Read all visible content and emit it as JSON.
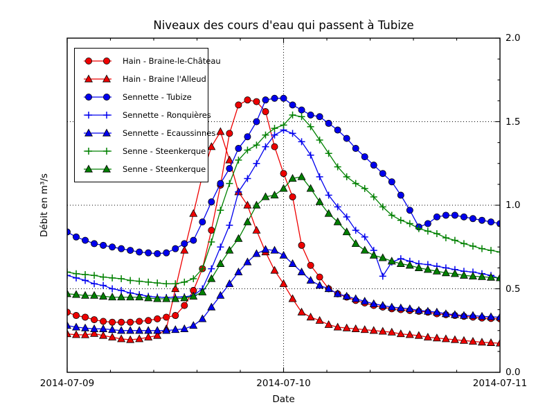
{
  "title": "Niveaux des cours d'eau qui passent à Tubize",
  "axes": {
    "xlabel": "Date",
    "ylabel": "Débit en m³/s",
    "x_tick_labels": [
      "2014-07-09",
      "2014-07-10",
      "2014-07-11"
    ],
    "y_tick_labels": [
      "0.0",
      "0.5",
      "1.0",
      "1.5",
      "2.0"
    ]
  },
  "chart_data": {
    "type": "line",
    "title": "Niveaux des cours d'eau qui passent à Tubize",
    "xlabel": "Date",
    "ylabel": "Débit en m³/s",
    "x_unit": "hours since 2014-07-09 00:00",
    "x_range_hours": [
      0,
      48
    ],
    "x_major_ticks_hours": [
      0,
      24,
      48
    ],
    "x_tick_labels": [
      "2014-07-09",
      "2014-07-10",
      "2014-07-11"
    ],
    "ylim": [
      0,
      2
    ],
    "y_major_ticks": [
      0,
      0.5,
      1.0,
      1.5,
      2.0
    ],
    "grid": {
      "style": "dotted",
      "horizontal_at": [
        0.5,
        1.0,
        1.5
      ],
      "vertical_at_hours": [
        24
      ]
    },
    "legend_position": "upper left",
    "sample_step_hours": 1,
    "series": [
      {
        "name": "Hain - Braine-le-Château",
        "color": "#ee0000",
        "marker": "circle",
        "values": [
          0.36,
          0.34,
          0.33,
          0.315,
          0.305,
          0.3,
          0.3,
          0.3,
          0.305,
          0.31,
          0.32,
          0.33,
          0.34,
          0.4,
          0.49,
          0.62,
          0.85,
          1.12,
          1.43,
          1.6,
          1.63,
          1.62,
          1.56,
          1.35,
          1.19,
          1.05,
          0.76,
          0.64,
          0.57,
          0.5,
          0.47,
          0.45,
          0.43,
          0.415,
          0.4,
          0.39,
          0.38,
          0.375,
          0.37,
          0.365,
          0.36,
          0.35,
          0.345,
          0.34,
          0.335,
          0.33,
          0.325,
          0.322,
          0.32
        ]
      },
      {
        "name": "Hain - Braine l'Alleud",
        "color": "#ee0000",
        "marker": "triangle",
        "values": [
          0.23,
          0.225,
          0.224,
          0.232,
          0.22,
          0.21,
          0.2,
          0.195,
          0.2,
          0.21,
          0.22,
          0.26,
          0.5,
          0.73,
          0.95,
          1.18,
          1.35,
          1.44,
          1.27,
          1.08,
          1.0,
          0.85,
          0.72,
          0.61,
          0.53,
          0.44,
          0.36,
          0.33,
          0.31,
          0.285,
          0.27,
          0.265,
          0.26,
          0.255,
          0.25,
          0.245,
          0.24,
          0.23,
          0.225,
          0.22,
          0.21,
          0.205,
          0.2,
          0.195,
          0.19,
          0.185,
          0.18,
          0.177,
          0.174
        ]
      },
      {
        "name": "Sennette - Tubize",
        "color": "#0000ee",
        "marker": "circle",
        "values": [
          0.84,
          0.81,
          0.79,
          0.77,
          0.76,
          0.75,
          0.74,
          0.73,
          0.72,
          0.715,
          0.71,
          0.715,
          0.74,
          0.77,
          0.79,
          0.9,
          1.02,
          1.13,
          1.22,
          1.34,
          1.41,
          1.5,
          1.63,
          1.64,
          1.64,
          1.6,
          1.57,
          1.54,
          1.53,
          1.49,
          1.45,
          1.4,
          1.34,
          1.29,
          1.24,
          1.19,
          1.14,
          1.06,
          0.97,
          0.87,
          0.89,
          0.93,
          0.94,
          0.94,
          0.93,
          0.92,
          0.91,
          0.9,
          0.89
        ]
      },
      {
        "name": "Sennette - Ronquières",
        "color": "#0000ee",
        "marker": "plus",
        "values": [
          0.58,
          0.565,
          0.55,
          0.53,
          0.52,
          0.5,
          0.49,
          0.475,
          0.465,
          0.455,
          0.45,
          0.448,
          0.45,
          0.452,
          0.46,
          0.5,
          0.62,
          0.75,
          0.88,
          1.08,
          1.16,
          1.25,
          1.35,
          1.42,
          1.45,
          1.43,
          1.38,
          1.3,
          1.17,
          1.06,
          0.99,
          0.93,
          0.85,
          0.81,
          0.73,
          0.575,
          0.66,
          0.68,
          0.665,
          0.65,
          0.645,
          0.635,
          0.625,
          0.615,
          0.605,
          0.6,
          0.59,
          0.58,
          0.56
        ]
      },
      {
        "name": "Sennette - Ecaussinnes",
        "color": "#0000ee",
        "marker": "triangle",
        "values": [
          0.28,
          0.27,
          0.265,
          0.26,
          0.26,
          0.255,
          0.25,
          0.25,
          0.25,
          0.25,
          0.25,
          0.25,
          0.255,
          0.26,
          0.28,
          0.32,
          0.39,
          0.46,
          0.53,
          0.6,
          0.66,
          0.71,
          0.735,
          0.73,
          0.7,
          0.65,
          0.6,
          0.55,
          0.52,
          0.5,
          0.47,
          0.455,
          0.44,
          0.425,
          0.41,
          0.4,
          0.39,
          0.385,
          0.38,
          0.37,
          0.365,
          0.36,
          0.35,
          0.345,
          0.34,
          0.34,
          0.335,
          0.332,
          0.33
        ]
      },
      {
        "name": "Senne - Steenkerque",
        "color": "#008000",
        "marker": "plus",
        "values": [
          0.6,
          0.59,
          0.585,
          0.58,
          0.57,
          0.565,
          0.56,
          0.55,
          0.545,
          0.54,
          0.535,
          0.53,
          0.53,
          0.54,
          0.56,
          0.62,
          0.78,
          0.97,
          1.13,
          1.27,
          1.33,
          1.36,
          1.42,
          1.46,
          1.48,
          1.54,
          1.53,
          1.47,
          1.39,
          1.31,
          1.23,
          1.17,
          1.13,
          1.1,
          1.05,
          0.99,
          0.94,
          0.91,
          0.89,
          0.86,
          0.845,
          0.83,
          0.805,
          0.79,
          0.77,
          0.755,
          0.74,
          0.73,
          0.72
        ]
      },
      {
        "name": "Senne - Steenkerque",
        "color": "#008000",
        "marker": "triangle",
        "values": [
          0.47,
          0.465,
          0.46,
          0.46,
          0.455,
          0.45,
          0.45,
          0.45,
          0.45,
          0.445,
          0.44,
          0.44,
          0.44,
          0.445,
          0.455,
          0.48,
          0.56,
          0.65,
          0.73,
          0.8,
          0.9,
          1.0,
          1.05,
          1.06,
          1.1,
          1.16,
          1.17,
          1.1,
          1.02,
          0.95,
          0.9,
          0.84,
          0.77,
          0.73,
          0.7,
          0.685,
          0.665,
          0.65,
          0.64,
          0.625,
          0.615,
          0.605,
          0.595,
          0.59,
          0.58,
          0.575,
          0.572,
          0.568,
          0.565
        ]
      }
    ]
  }
}
